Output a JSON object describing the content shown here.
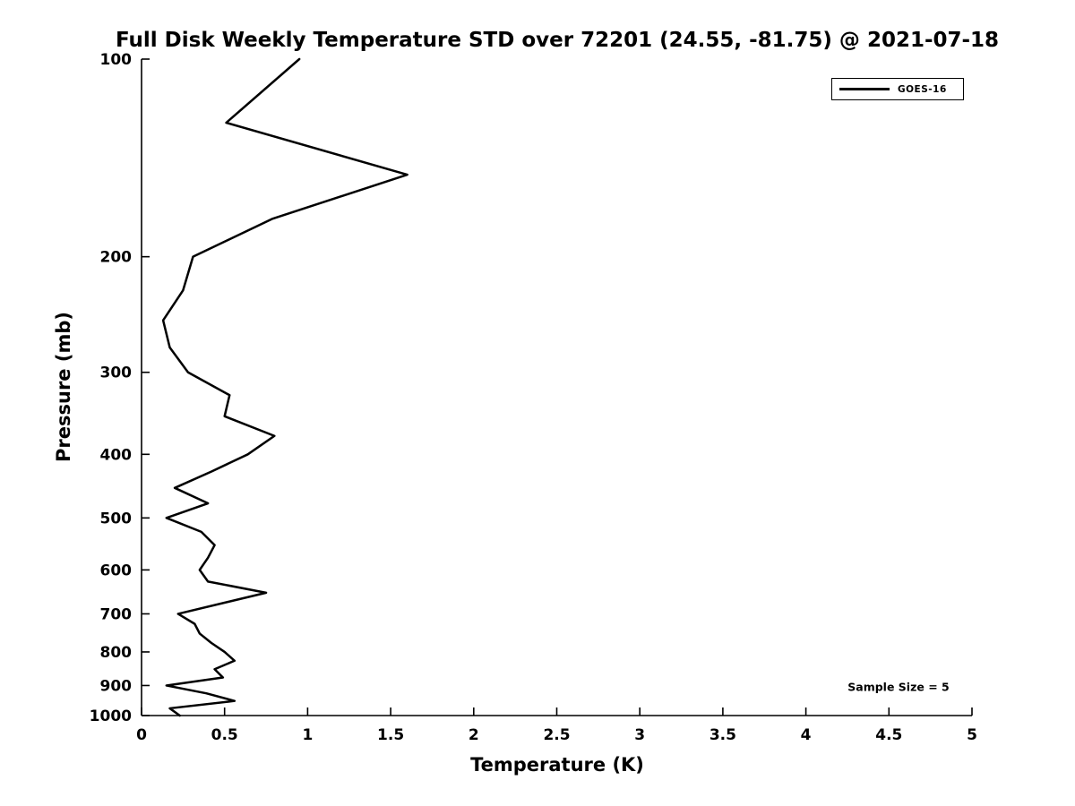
{
  "figure": {
    "background_color": "#ffffff",
    "text_color": "#000000",
    "axis_color": "#000000"
  },
  "chart_data": {
    "type": "line",
    "title": "Full Disk Weekly Temperature STD over 72201 (24.55, -81.75) @ 2021-07-18",
    "xlabel": "Temperature (K)",
    "ylabel": "Pressure (mb)",
    "xlim": [
      0,
      5
    ],
    "xticks": [
      0,
      0.5,
      1,
      1.5,
      2,
      2.5,
      3,
      3.5,
      4,
      4.5,
      5
    ],
    "ylim": [
      100,
      1000
    ],
    "yticks": [
      100,
      200,
      300,
      400,
      500,
      600,
      700,
      800,
      900,
      1000
    ],
    "yscale": "log",
    "y_axis_direction": "reversed",
    "grid": false,
    "box": false,
    "legend": {
      "position": "top-right",
      "entries": [
        {
          "label": "GOES-16",
          "color": "#000000"
        }
      ]
    },
    "annotations": [
      {
        "text": "Sample Size = 5",
        "position": "inside-bottom-right"
      }
    ],
    "series": [
      {
        "name": "GOES-16",
        "color": "#000000",
        "line_width": 2.5,
        "points": [
          {
            "pressure_mb": 100,
            "temperature_K": 0.95
          },
          {
            "pressure_mb": 125,
            "temperature_K": 0.51
          },
          {
            "pressure_mb": 150,
            "temperature_K": 1.6
          },
          {
            "pressure_mb": 175,
            "temperature_K": 0.79
          },
          {
            "pressure_mb": 200,
            "temperature_K": 0.31
          },
          {
            "pressure_mb": 225,
            "temperature_K": 0.25
          },
          {
            "pressure_mb": 250,
            "temperature_K": 0.13
          },
          {
            "pressure_mb": 275,
            "temperature_K": 0.17
          },
          {
            "pressure_mb": 300,
            "temperature_K": 0.28
          },
          {
            "pressure_mb": 325,
            "temperature_K": 0.53
          },
          {
            "pressure_mb": 350,
            "temperature_K": 0.5
          },
          {
            "pressure_mb": 375,
            "temperature_K": 0.8
          },
          {
            "pressure_mb": 400,
            "temperature_K": 0.64
          },
          {
            "pressure_mb": 425,
            "temperature_K": 0.42
          },
          {
            "pressure_mb": 450,
            "temperature_K": 0.2
          },
          {
            "pressure_mb": 475,
            "temperature_K": 0.4
          },
          {
            "pressure_mb": 500,
            "temperature_K": 0.15
          },
          {
            "pressure_mb": 525,
            "temperature_K": 0.36
          },
          {
            "pressure_mb": 550,
            "temperature_K": 0.44
          },
          {
            "pressure_mb": 575,
            "temperature_K": 0.4
          },
          {
            "pressure_mb": 600,
            "temperature_K": 0.35
          },
          {
            "pressure_mb": 625,
            "temperature_K": 0.4
          },
          {
            "pressure_mb": 650,
            "temperature_K": 0.75
          },
          {
            "pressure_mb": 700,
            "temperature_K": 0.22
          },
          {
            "pressure_mb": 725,
            "temperature_K": 0.32
          },
          {
            "pressure_mb": 750,
            "temperature_K": 0.35
          },
          {
            "pressure_mb": 775,
            "temperature_K": 0.42
          },
          {
            "pressure_mb": 800,
            "temperature_K": 0.5
          },
          {
            "pressure_mb": 825,
            "temperature_K": 0.56
          },
          {
            "pressure_mb": 850,
            "temperature_K": 0.44
          },
          {
            "pressure_mb": 875,
            "temperature_K": 0.49
          },
          {
            "pressure_mb": 900,
            "temperature_K": 0.15
          },
          {
            "pressure_mb": 925,
            "temperature_K": 0.39
          },
          {
            "pressure_mb": 950,
            "temperature_K": 0.56
          },
          {
            "pressure_mb": 975,
            "temperature_K": 0.17
          },
          {
            "pressure_mb": 1000,
            "temperature_K": 0.23
          }
        ]
      }
    ]
  }
}
